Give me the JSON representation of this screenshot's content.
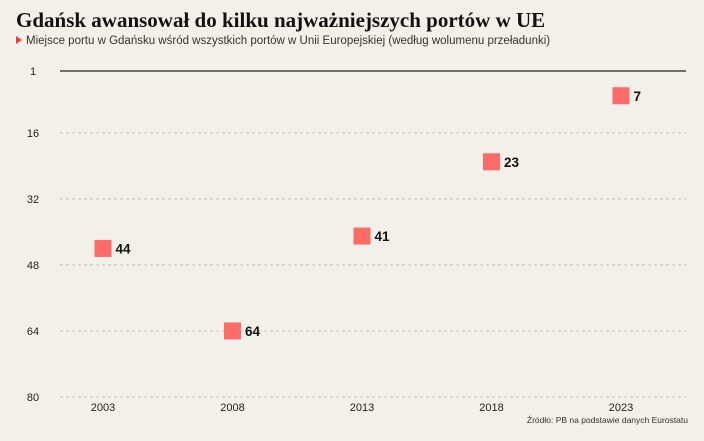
{
  "title": "Gdańsk awansował do kilku najważniejszych portów w UE",
  "subtitle": "Miejsce portu w Gdańsku wśród wszystkich portów w Unii Europejskiej (według wolumenu przeładunki)",
  "source": "Źródło: PB na podstawie danych Eurostatu",
  "colors": {
    "marker": "#fd6b69",
    "subtitle_arrow": "#e8424a",
    "grid": "#b9b4ab",
    "axis": "#222222",
    "background": "#f3f0ea"
  },
  "chart_data": {
    "type": "scatter",
    "title": "Gdańsk awansował do kilku najważniejszych portów w UE",
    "subtitle": "Miejsce portu w Gdańsku wśród wszystkich portów w Unii Europejskiej (według wolumenu przeładunki)",
    "categories": [
      "2003",
      "2008",
      "2013",
      "2018",
      "2023"
    ],
    "values": [
      44,
      64,
      41,
      23,
      7
    ],
    "data_labels": [
      "44",
      "64",
      "41",
      "23",
      "7"
    ],
    "y_ticks": [
      "1",
      "16",
      "32",
      "48",
      "64",
      "80"
    ],
    "ylim": [
      1,
      80
    ],
    "y_inverted": true,
    "grid": "horizontal dashed",
    "legend": "none",
    "xlabel": "",
    "ylabel": ""
  }
}
